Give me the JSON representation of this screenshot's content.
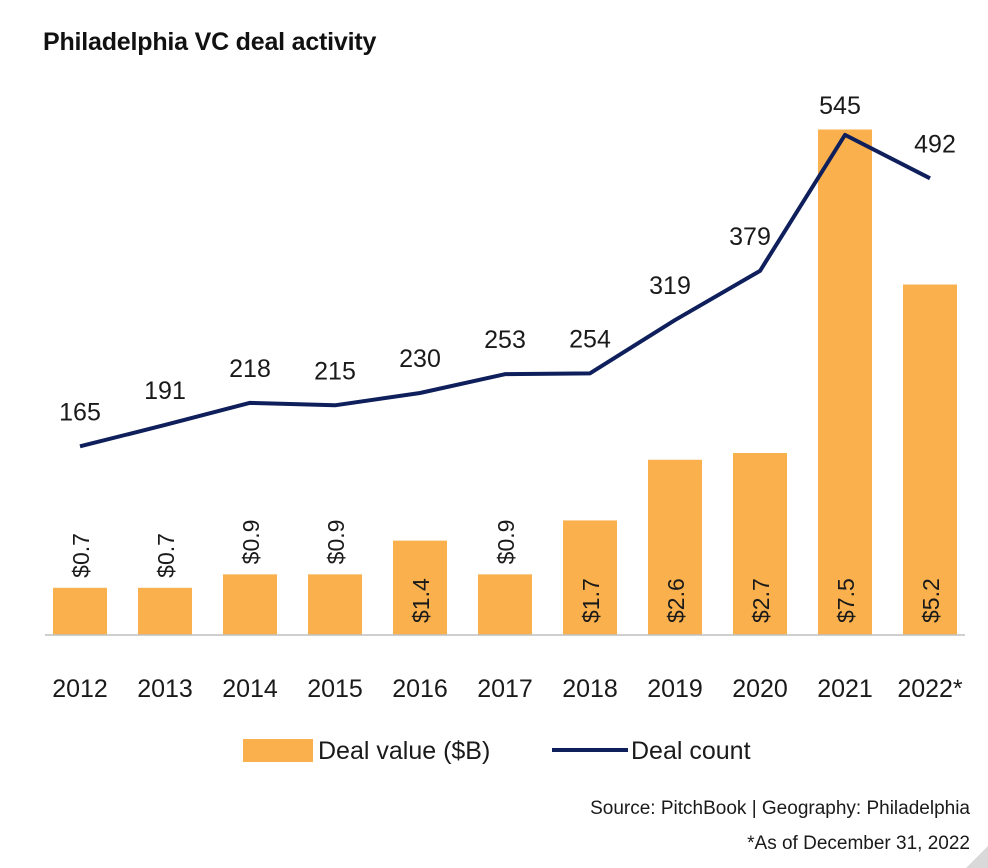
{
  "title": "Philadelphia VC deal activity",
  "source": "Source: PitchBook | Geography: Philadelphia",
  "note": "*As of December 31, 2022",
  "colors": {
    "bar": "#F9B04D",
    "line": "#0E1F5B",
    "text": "#1a1a1a"
  },
  "chart_data": {
    "type": "bar",
    "title": "Philadelphia VC deal activity",
    "categories": [
      "2012",
      "2013",
      "2014",
      "2015",
      "2016",
      "2017",
      "2018",
      "2019",
      "2020",
      "2021",
      "2022*"
    ],
    "series": [
      {
        "name": "Deal value ($B)",
        "type": "bar",
        "values": [
          0.7,
          0.7,
          0.9,
          0.9,
          1.4,
          0.9,
          1.7,
          2.6,
          2.7,
          7.5,
          5.2
        ],
        "labels": [
          "$0.7",
          "$0.7",
          "$0.9",
          "$0.9",
          "$1.4",
          "$0.9",
          "$1.7",
          "$2.6",
          "$2.7",
          "$7.5",
          "$5.2"
        ]
      },
      {
        "name": "Deal count",
        "type": "line",
        "values": [
          165,
          191,
          218,
          215,
          230,
          253,
          254,
          319,
          379,
          545,
          492
        ],
        "labels": [
          "165",
          "191",
          "218",
          "215",
          "230",
          "253",
          "254",
          "319",
          "379",
          "545",
          "492"
        ]
      }
    ],
    "legend": {
      "placement": "bottom",
      "entries": [
        "Deal value ($B)",
        "Deal count"
      ]
    },
    "grid": false
  }
}
